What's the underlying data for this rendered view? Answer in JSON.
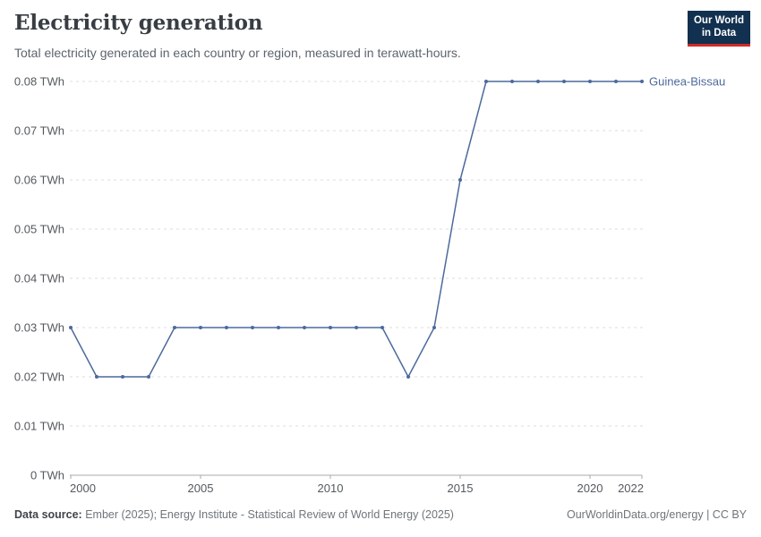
{
  "header": {
    "title": "Electricity generation",
    "subtitle": "Total electricity generated in each country or region, measured in terawatt-hours."
  },
  "logo": {
    "line1": "Our World",
    "line2": "in Data"
  },
  "chart_data": {
    "type": "line",
    "title": "Electricity generation",
    "unit": "TWh",
    "x": [
      2000,
      2001,
      2002,
      2003,
      2004,
      2005,
      2006,
      2007,
      2008,
      2009,
      2010,
      2011,
      2012,
      2013,
      2014,
      2015,
      2016,
      2017,
      2018,
      2019,
      2020,
      2021,
      2022
    ],
    "series": [
      {
        "name": "Guinea-Bissau",
        "color": "#4c6a9c",
        "values": [
          0.03,
          0.02,
          0.02,
          0.02,
          0.03,
          0.03,
          0.03,
          0.03,
          0.03,
          0.03,
          0.03,
          0.03,
          0.03,
          0.02,
          0.03,
          0.06,
          0.08,
          0.08,
          0.08,
          0.08,
          0.08,
          0.08,
          0.08
        ]
      }
    ],
    "xlim": [
      2000,
      2022
    ],
    "ylim": [
      0,
      0.08
    ],
    "yticks": [
      {
        "value": 0,
        "label": "0 TWh"
      },
      {
        "value": 0.01,
        "label": "0.01 TWh"
      },
      {
        "value": 0.02,
        "label": "0.02 TWh"
      },
      {
        "value": 0.03,
        "label": "0.03 TWh"
      },
      {
        "value": 0.04,
        "label": "0.04 TWh"
      },
      {
        "value": 0.05,
        "label": "0.05 TWh"
      },
      {
        "value": 0.06,
        "label": "0.06 TWh"
      },
      {
        "value": 0.07,
        "label": "0.07 TWh"
      },
      {
        "value": 0.08,
        "label": "0.08 TWh"
      }
    ],
    "xticks": [
      {
        "value": 2000,
        "label": "2000"
      },
      {
        "value": 2005,
        "label": "2005"
      },
      {
        "value": 2010,
        "label": "2010"
      },
      {
        "value": 2015,
        "label": "2015"
      },
      {
        "value": 2020,
        "label": "2020"
      },
      {
        "value": 2022,
        "label": "2022"
      }
    ],
    "grid": "horizontal-dashed",
    "legend_position": "line-end-label"
  },
  "footer": {
    "datasource_label": "Data source:",
    "datasource_text": " Ember (2025); Energy Institute - Statistical Review of World Energy (2025)",
    "credit": "OurWorldinData.org/energy | CC BY"
  },
  "colors": {
    "accent": "#4c6a9c",
    "grid": "#dedede",
    "axis": "#a9a9a9",
    "tick_text": "#54595e",
    "logo_bg": "#12304f",
    "logo_bar": "#cf2c27"
  }
}
